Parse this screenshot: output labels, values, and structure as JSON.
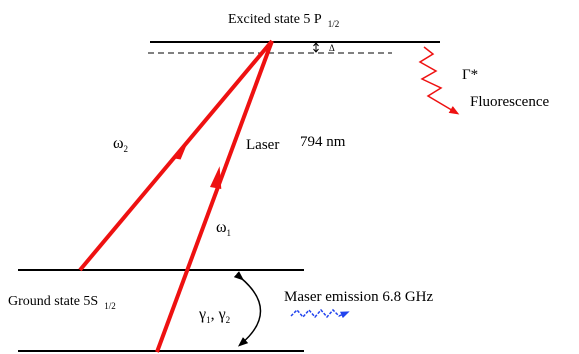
{
  "excited_state": {
    "label": "Excited state 5 P",
    "subscript": "1/2"
  },
  "detuning": {
    "symbol": "Δ"
  },
  "decay": {
    "symbol": "Γ*",
    "label": "Fluorescence"
  },
  "laser": {
    "label": "Laser",
    "wavelength": "794 nm"
  },
  "omega1": {
    "symbol": "ω",
    "subscript": "1"
  },
  "omega2": {
    "symbol": "ω",
    "subscript": "2"
  },
  "ground_state": {
    "label": "Ground state 5S",
    "subscript": "1/2"
  },
  "gammas": {
    "g": "γ",
    "sub1": "1",
    "sep": ", ",
    "sub2": "2"
  },
  "maser": {
    "label": "Maser emission 6.8 GHz"
  },
  "colors": {
    "beam": "#ee1111",
    "maser_wave": "#2244ee",
    "lines": "#000000"
  }
}
